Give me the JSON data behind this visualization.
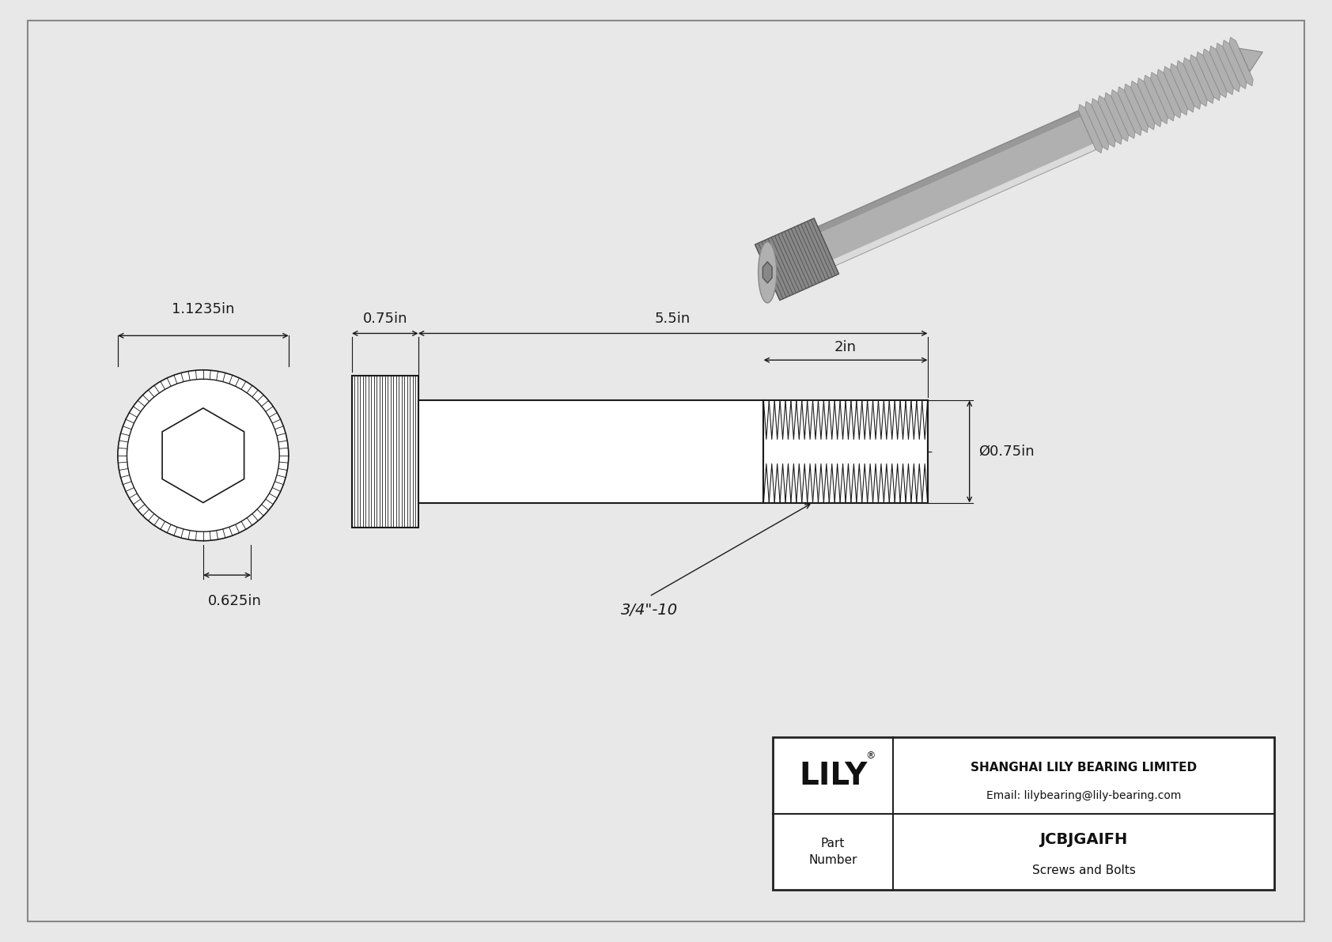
{
  "bg_color": "#e8e8e8",
  "drawing_bg": "#ffffff",
  "border_color": "#aaaaaa",
  "line_color": "#1a1a1a",
  "title": "JCBJGAIFH",
  "subtitle": "Screws and Bolts",
  "company": "SHANGHAI LILY BEARING LIMITED",
  "email": "Email: lilybearing@lily-bearing.com",
  "part_label": "Part\nNumber",
  "dim_head_width": "1.1235in",
  "dim_head_height": "0.625in",
  "dim_shank_len": "0.75in",
  "dim_total_len": "5.5in",
  "dim_thread_len": "2in",
  "dim_diameter": "Ø0.75in",
  "dim_thread_spec": "3/4\"-10",
  "fig_width": 16.84,
  "fig_height": 11.91,
  "dpi": 100
}
